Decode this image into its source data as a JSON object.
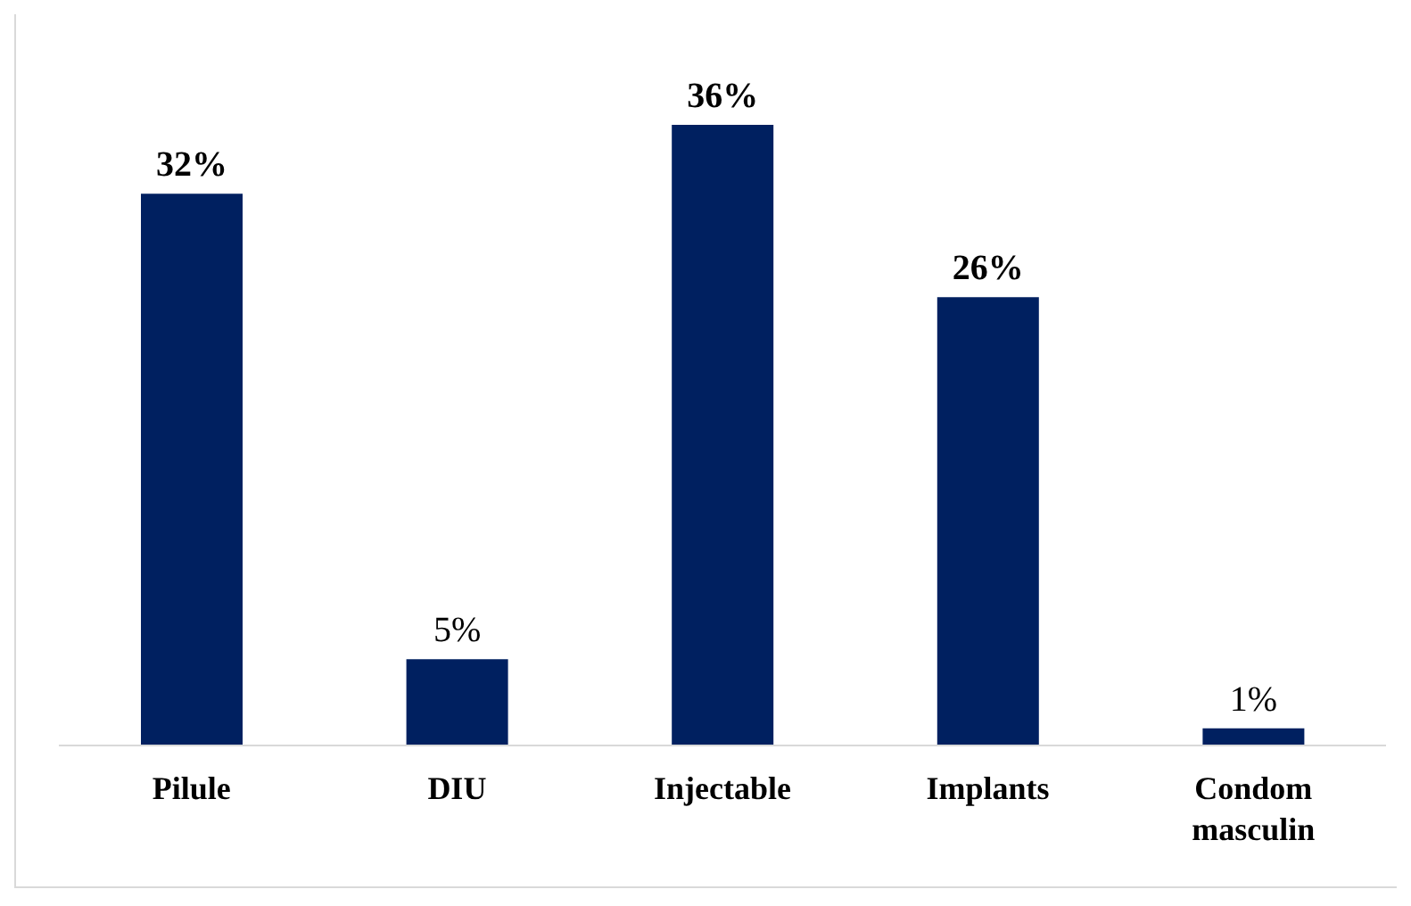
{
  "chart_data": {
    "type": "bar",
    "categories": [
      "Pilule",
      "DIU",
      "Injectable",
      "Implants",
      "Condom masculin"
    ],
    "values": [
      32,
      5,
      36,
      26,
      1
    ],
    "value_labels": [
      "32%",
      "5%",
      "36%",
      "26%",
      "1%"
    ],
    "color": "#002060"
  }
}
